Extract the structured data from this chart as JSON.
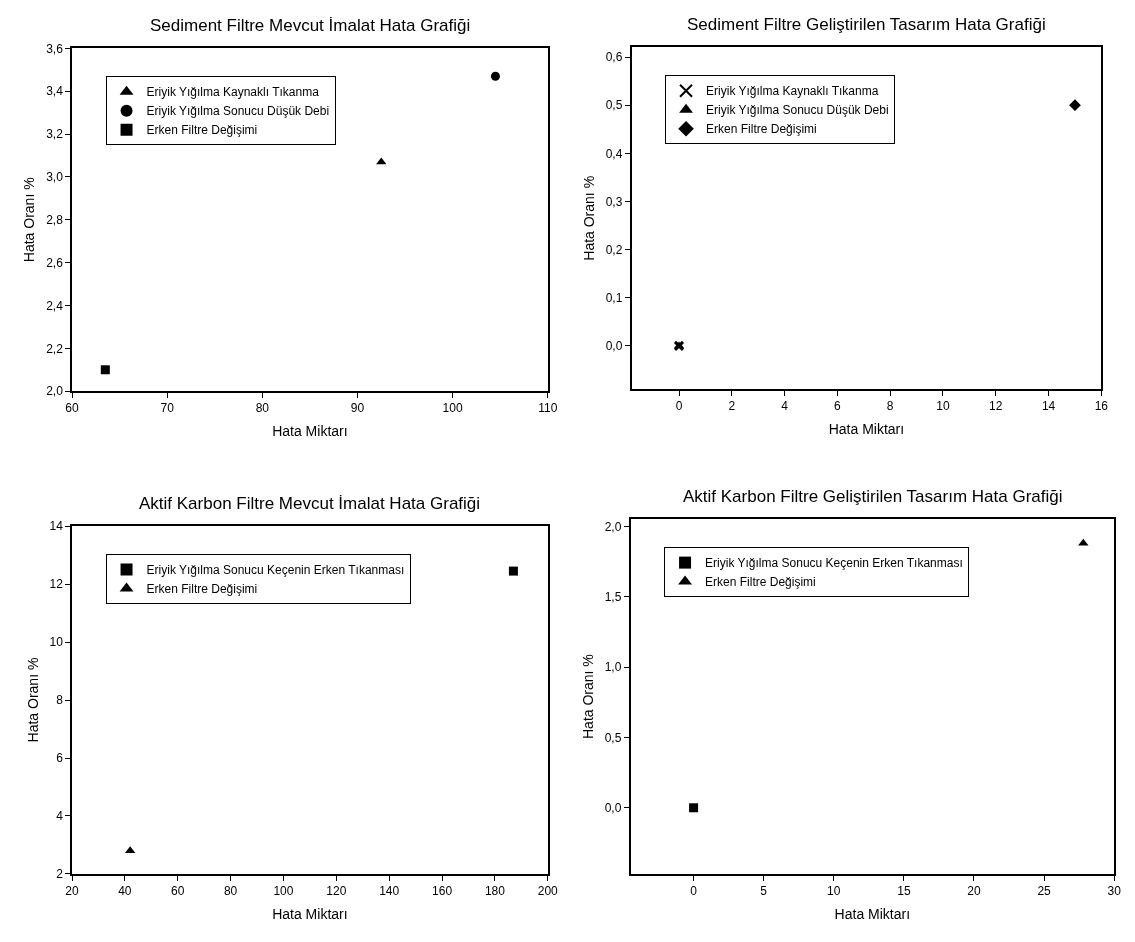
{
  "chart_data": [
    {
      "type": "scatter",
      "title": "Sediment Filtre Mevcut İmalat Hata Grafiği",
      "xlabel": "Hata Miktarı",
      "ylabel": "Hata Oranı %",
      "xlim": [
        60,
        110
      ],
      "xticks": [
        60,
        70,
        80,
        90,
        100,
        110
      ],
      "ylim": [
        2.0,
        3.6
      ],
      "yticks": [
        {
          "value": 2.0,
          "label": "2,0"
        },
        {
          "value": 2.2,
          "label": "2,2"
        },
        {
          "value": 2.4,
          "label": "2,4"
        },
        {
          "value": 2.6,
          "label": "2,6"
        },
        {
          "value": 2.8,
          "label": "2,8"
        },
        {
          "value": 3.0,
          "label": "3,0"
        },
        {
          "value": 3.2,
          "label": "3,2"
        },
        {
          "value": 3.4,
          "label": "3,4"
        },
        {
          "value": 3.6,
          "label": "3,6"
        }
      ],
      "legend": "top left",
      "series": [
        {
          "name": "Eriyik Yığılma Kaynaklı Tıkanma",
          "color": "#000000",
          "marker": "triangle",
          "x": [
            92.5
          ],
          "values": [
            3.07
          ]
        },
        {
          "name": "Eriyik Yığılma Sonucu Düşük Debi",
          "color": "#000000",
          "marker": "circle",
          "x": [
            104.5
          ],
          "values": [
            3.47
          ]
        },
        {
          "name": "Erken Filtre Değişimi",
          "color": "#000000",
          "marker": "square",
          "x": [
            63.5
          ],
          "values": [
            2.1
          ]
        }
      ]
    },
    {
      "type": "scatter",
      "title": "Sediment Filtre Geliştirilen Tasarım Hata Grafiği",
      "xlabel": "Hata Miktarı",
      "ylabel": "Hata Oranı %",
      "xlim": [
        -1.8,
        16
      ],
      "xticks": [
        0,
        2,
        4,
        6,
        8,
        10,
        12,
        14,
        16
      ],
      "ylim": [
        -0.09,
        0.62
      ],
      "yticks": [
        {
          "value": 0.0,
          "label": "0,0"
        },
        {
          "value": 0.1,
          "label": "0,1"
        },
        {
          "value": 0.2,
          "label": "0,2"
        },
        {
          "value": 0.3,
          "label": "0,3"
        },
        {
          "value": 0.4,
          "label": "0,4"
        },
        {
          "value": 0.5,
          "label": "0,5"
        },
        {
          "value": 0.6,
          "label": "0,6"
        }
      ],
      "legend": "top left",
      "series": [
        {
          "name": "Eriyik Yığılma Kaynaklı Tıkanma",
          "color": "#000000",
          "marker": "cross",
          "x": [
            0
          ],
          "values": [
            0
          ]
        },
        {
          "name": "Eriyik Yığılma Sonucu Düşük Debi",
          "color": "#000000",
          "marker": "triangle",
          "x": [
            0
          ],
          "values": [
            0
          ]
        },
        {
          "name": "Erken Filtre Değişimi",
          "color": "#000000",
          "marker": "diamond",
          "x": [
            15
          ],
          "values": [
            0.5
          ]
        }
      ]
    },
    {
      "type": "scatter",
      "title": "Aktif Karbon Filtre Mevcut İmalat Hata Grafiği",
      "xlabel": "Hata Miktarı",
      "ylabel": "Hata Oranı %",
      "xlim": [
        20,
        200
      ],
      "xticks": [
        20,
        40,
        60,
        80,
        100,
        120,
        140,
        160,
        180,
        200
      ],
      "ylim": [
        2,
        14
      ],
      "yticks": [
        2,
        4,
        6,
        8,
        10,
        12,
        14
      ],
      "legend": "top left",
      "series": [
        {
          "name": "Eriyik Yığılma Sonucu Keçenin Erken Tıkanması",
          "color": "#000000",
          "marker": "square",
          "x": [
            187
          ],
          "values": [
            12.45
          ]
        },
        {
          "name": "Erken Filtre Değişimi",
          "color": "#000000",
          "marker": "triangle",
          "x": [
            42
          ],
          "values": [
            2.8
          ]
        }
      ]
    },
    {
      "type": "scatter",
      "title": "Aktif Karbon Filtre Geliştirilen Tasarım Hata Grafiği",
      "xlabel": "Hata Miktarı",
      "ylabel": "Hata Oranı %",
      "xlim": [
        -4.5,
        30
      ],
      "xticks": [
        0,
        5,
        10,
        15,
        20,
        25,
        30
      ],
      "ylim": [
        -0.47,
        2.05
      ],
      "yticks": [
        {
          "value": 0.0,
          "label": "0,0"
        },
        {
          "value": 0.5,
          "label": "0,5"
        },
        {
          "value": 1.0,
          "label": "1,0"
        },
        {
          "value": 1.5,
          "label": "1,5"
        },
        {
          "value": 2.0,
          "label": "2,0"
        }
      ],
      "legend": "top left",
      "series": [
        {
          "name": "Eriyik Yığılma Sonucu Keçenin Erken Tıkanması",
          "color": "#000000",
          "marker": "square",
          "x": [
            0
          ],
          "values": [
            0
          ]
        },
        {
          "name": "Erken Filtre Değişimi",
          "color": "#000000",
          "marker": "triangle",
          "x": [
            27.8
          ],
          "values": [
            1.88
          ]
        }
      ]
    }
  ]
}
